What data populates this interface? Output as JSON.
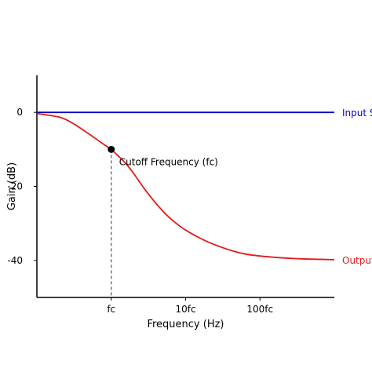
{
  "chart_data": {
    "type": "line",
    "xlabel": "Frequency (Hz)",
    "ylabel": "Gain (dB)",
    "xscale": "log",
    "xlim_decades": [
      -1,
      3
    ],
    "ylim": [
      -50,
      10
    ],
    "x_ticks": [
      {
        "value": 1,
        "label": "fc"
      },
      {
        "value": 10,
        "label": "10fc"
      },
      {
        "value": 100,
        "label": "100fc"
      }
    ],
    "y_ticks": [
      {
        "value": 0,
        "label": "0"
      },
      {
        "value": -20,
        "label": "-20"
      },
      {
        "value": -40,
        "label": "-40"
      }
    ],
    "grid": false,
    "series": [
      {
        "name": "Input Signal",
        "color": "#0000cc",
        "x": [
          0.1,
          1000
        ],
        "y": [
          0,
          0
        ]
      },
      {
        "name": "Output Signal",
        "color": "#e31a1c",
        "x": [
          0.1,
          0.2,
          0.3,
          0.5,
          0.7,
          1,
          1.5,
          2,
          3,
          5,
          7,
          10,
          20,
          50,
          100,
          300,
          1000
        ],
        "y": [
          -0.3,
          -1.3,
          -2.9,
          -5.8,
          -7.9,
          -10.1,
          -13.4,
          -16.5,
          -21.5,
          -26.8,
          -29.5,
          -31.8,
          -35.0,
          -37.8,
          -38.8,
          -39.5,
          -39.8
        ]
      }
    ],
    "annotations": [
      {
        "text": "Cutoff Frequency (fc)",
        "x": 1,
        "y": -10,
        "marker": "point",
        "dropline": true
      }
    ]
  }
}
